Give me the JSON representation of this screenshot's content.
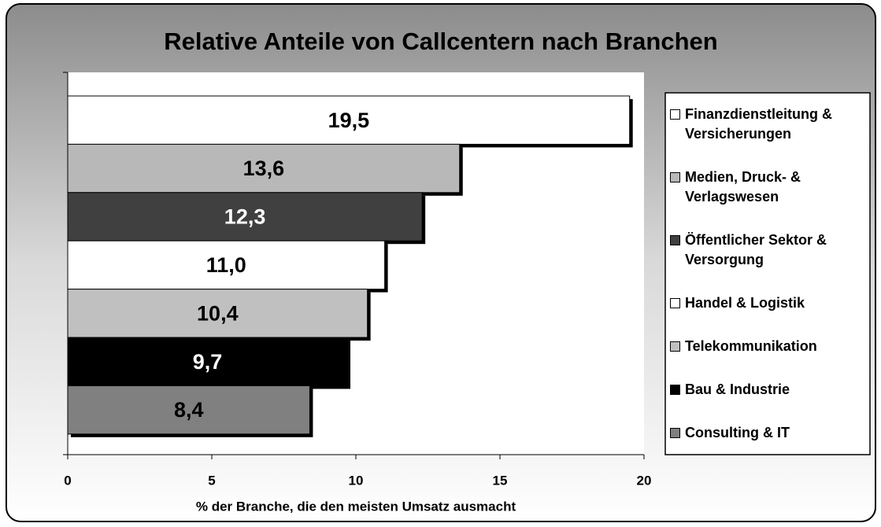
{
  "chart_data": {
    "type": "bar",
    "orientation": "horizontal",
    "title": "Relative Anteile von Callcentern nach Branchen",
    "xlabel": "% der Branche, die den meisten Umsatz ausmacht",
    "categories": [
      "Finanzdienstleitung & Versicherungen",
      "Medien, Druck- & Verlagswesen",
      "Öffentlicher Sektor & Versorgung",
      "Handel & Logistik",
      "Telekommunikation",
      "Bau & Industrie",
      "Consulting & IT"
    ],
    "values": [
      19.5,
      13.6,
      12.3,
      11.0,
      10.4,
      9.7,
      8.4
    ],
    "value_labels": [
      "19,5",
      "13,6",
      "12,3",
      "11,0",
      "10,4",
      "9,7",
      "8,4"
    ],
    "colors": [
      "#ffffff",
      "#b8b8b8",
      "#404040",
      "#ffffff",
      "#c0c0c0",
      "#000000",
      "#808080"
    ],
    "xlim": [
      0,
      20
    ],
    "xticks": [
      0,
      5,
      10,
      15,
      20
    ],
    "legend": "right"
  }
}
